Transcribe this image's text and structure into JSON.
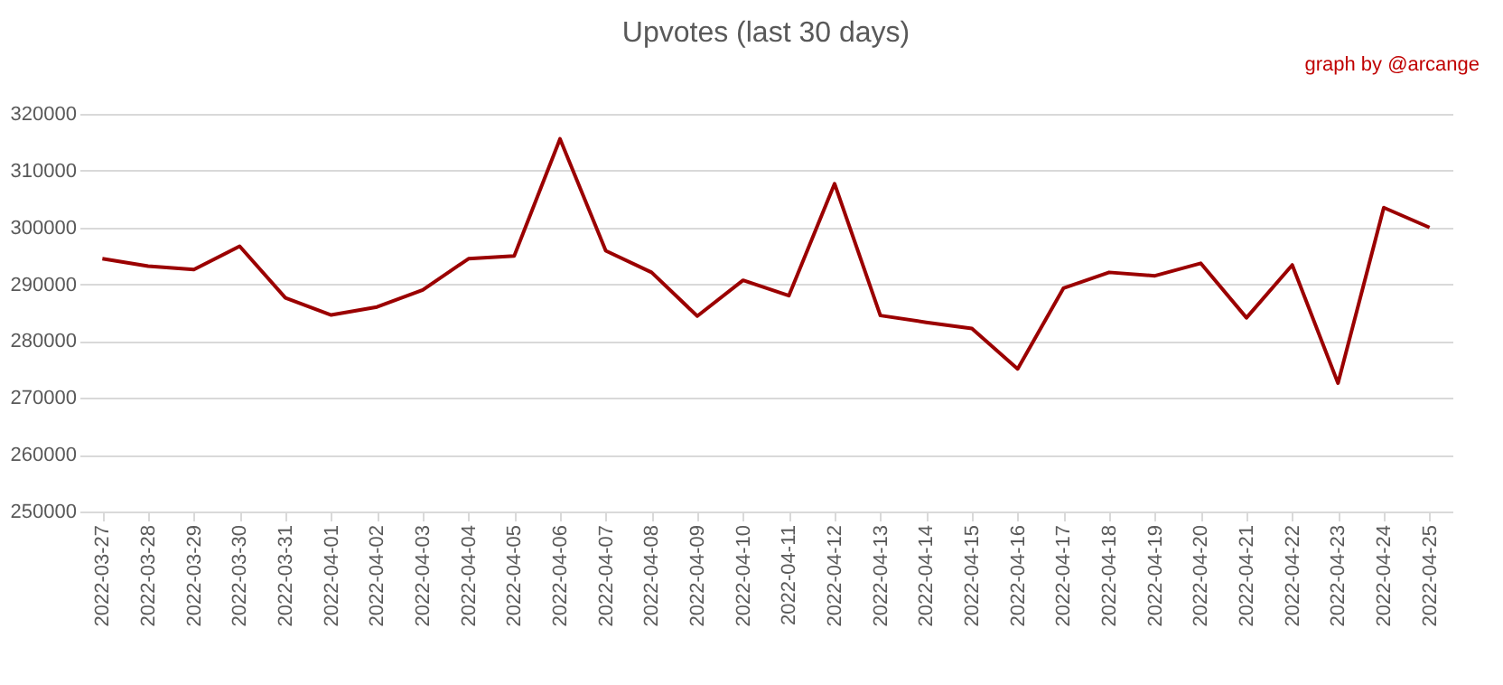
{
  "chart_data": {
    "type": "line",
    "title": "Upvotes (last 30 days)",
    "annotations": [
      "graph by @arcange"
    ],
    "categories": [
      "2022-03-27",
      "2022-03-28",
      "2022-03-29",
      "2022-03-30",
      "2022-03-31",
      "2022-04-01",
      "2022-04-02",
      "2022-04-03",
      "2022-04-04",
      "2022-04-05",
      "2022-04-06",
      "2022-04-07",
      "2022-04-08",
      "2022-04-09",
      "2022-04-10",
      "2022-04-11",
      "2022-04-12",
      "2022-04-13",
      "2022-04-14",
      "2022-04-15",
      "2022-04-16",
      "2022-04-17",
      "2022-04-18",
      "2022-04-19",
      "2022-04-20",
      "2022-04-21",
      "2022-04-22",
      "2022-04-23",
      "2022-04-24",
      "2022-04-25"
    ],
    "series": [
      {
        "color": "#9b0000",
        "values": [
          294500,
          293200,
          292600,
          296700,
          287600,
          284600,
          286000,
          289000,
          294500,
          295000,
          315600,
          295900,
          292100,
          284400,
          290700,
          288000,
          307700,
          284500,
          283300,
          282200,
          275100,
          289300,
          292100,
          291500,
          293700,
          284100,
          293400,
          272600,
          303500,
          300000
        ]
      }
    ],
    "ylim": [
      250000,
      320000
    ],
    "yticks": [
      250000,
      260000,
      270000,
      280000,
      290000,
      300000,
      310000,
      320000
    ],
    "grid": "y",
    "marker": "none",
    "line_style": "solid"
  }
}
